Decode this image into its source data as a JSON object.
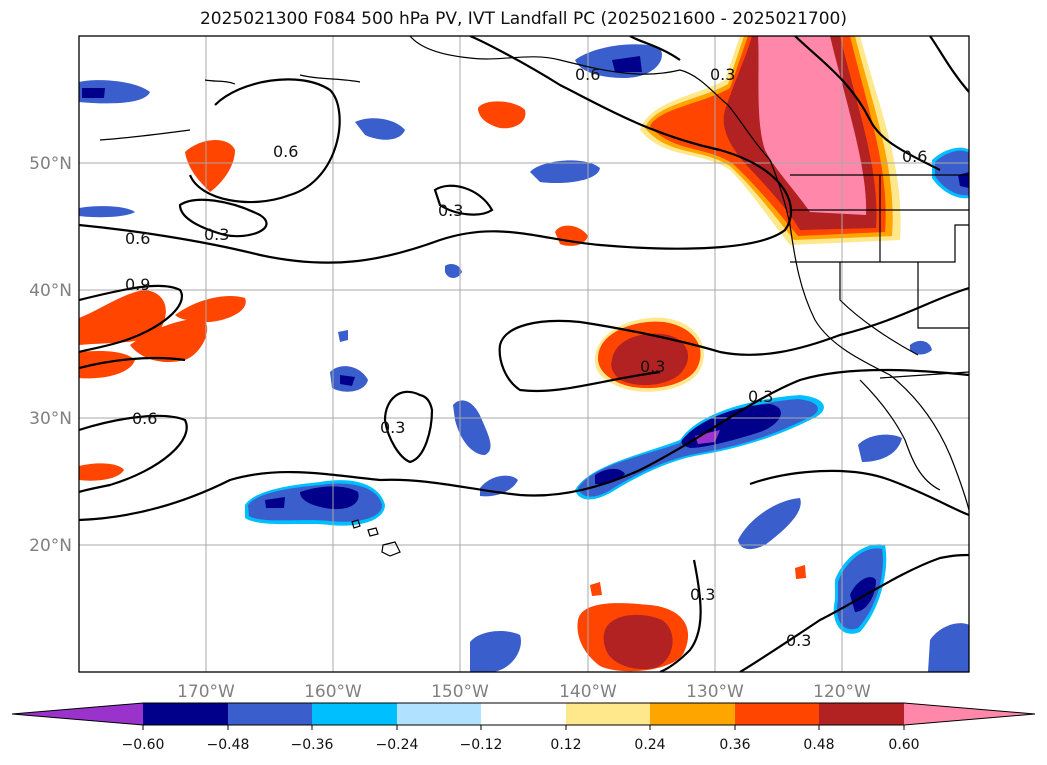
{
  "title": "2025021300 F084 500 hPa PV, IVT Landfall PC (2025021600 - 2025021700)",
  "map": {
    "lon_range": [
      -180,
      -110
    ],
    "lat_range": [
      10,
      60
    ],
    "projection": "PlateCarree",
    "grid": true,
    "lat_labels": [
      "20°N",
      "30°N",
      "40°N",
      "50°N"
    ],
    "lon_labels": [
      "170°W",
      "160°W",
      "150°W",
      "140°W",
      "130°W",
      "120°W"
    ],
    "contour_labels": [
      "0.6",
      "0.6",
      "0.3",
      "0.3",
      "0.3",
      "0.6",
      "0.3",
      "0.9",
      "0.6",
      "0.3",
      "0.3",
      "0.3",
      "0.3",
      "0.6"
    ]
  },
  "colorbar": {
    "extend": "both",
    "colors": [
      "#9933cc",
      "#00008b",
      "#3a5fcd",
      "#00bfff",
      "#b0e2ff",
      "#ffffff",
      "#ffe78c",
      "#ffa500",
      "#ff4500",
      "#b22222",
      "#ff88aa"
    ],
    "ticks": [
      "−0.60",
      "−0.48",
      "−0.36",
      "−0.24",
      "−0.12",
      "0.12",
      "0.24",
      "0.36",
      "0.48",
      "0.60"
    ]
  }
}
